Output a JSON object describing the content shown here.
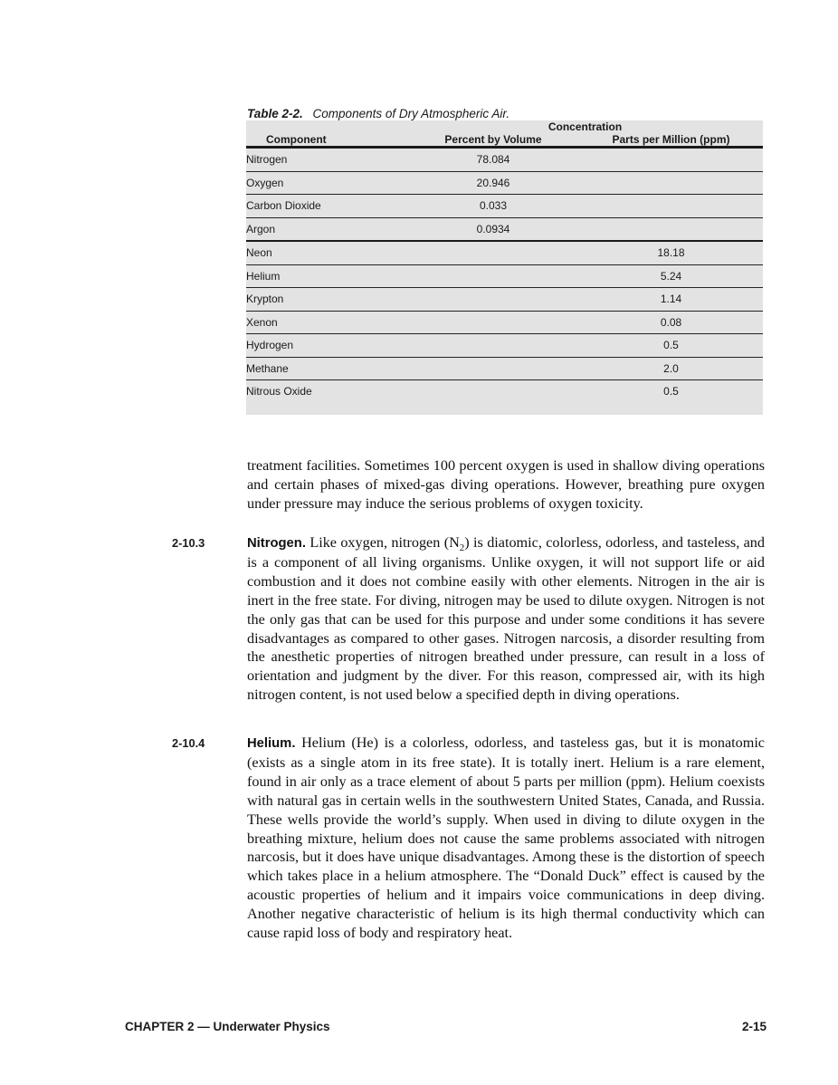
{
  "colors": {
    "table_bg": "#e3e3e3",
    "rule": "#1a1a1a",
    "text": "#111111"
  },
  "table": {
    "caption_label": "Table 2-2.",
    "caption_text": "Components of Dry Atmospheric Air.",
    "concentration_header": "Concentration",
    "columns": {
      "component": "Component",
      "percent": "Percent by Volume",
      "ppm": "Parts per Million (ppm)"
    },
    "rows": [
      {
        "component": "Nitrogen",
        "percent": "78.084",
        "ppm": ""
      },
      {
        "component": "Oxygen",
        "percent": "20.946",
        "ppm": ""
      },
      {
        "component": "Carbon Dioxide",
        "percent": "0.033",
        "ppm": ""
      },
      {
        "component": "Argon",
        "percent": "0.0934",
        "ppm": ""
      },
      {
        "component": "Neon",
        "percent": "",
        "ppm": "18.18"
      },
      {
        "component": "Helium",
        "percent": "",
        "ppm": "5.24"
      },
      {
        "component": "Krypton",
        "percent": "",
        "ppm": "1.14"
      },
      {
        "component": "Xenon",
        "percent": "",
        "ppm": "0.08"
      },
      {
        "component": "Hydrogen",
        "percent": "",
        "ppm": "0.5"
      },
      {
        "component": "Methane",
        "percent": "",
        "ppm": "2.0"
      },
      {
        "component": "Nitrous Oxide",
        "percent": "",
        "ppm": "0.5"
      }
    ]
  },
  "paragraphs": {
    "intro": {
      "text": "treatment facilities. Sometimes 100 percent oxygen is used in shallow diving operations and certain phases of mixed-gas diving operations. However, breathing pure oxygen under pressure may induce the serious problems of oxygen toxicity."
    },
    "nitrogen": {
      "number": "2-10.3",
      "lead": "Nitrogen.",
      "pre_sub": " Like oxygen, nitrogen (N",
      "sub": "2",
      "post_sub": ") is diatomic, colorless, odorless, and tasteless, and is a component of all living organisms. Unlike oxygen, it will not support life or aid combustion and it does not combine easily with other elements. Nitrogen in the air is inert in the free state. For diving, nitrogen may be used to dilute oxygen. Nitrogen is not the only gas that can be used for this purpose and under some conditions it has severe disadvantages as compared to other gases. Nitrogen narcosis, a disorder resulting from the anesthetic properties of nitrogen breathed under pressure, can result in a loss of orientation and judgment by the diver. For this reason, compressed air, with its high nitrogen content, is not used below a specified depth in diving operations."
    },
    "helium": {
      "number": "2-10.4",
      "lead": "Helium.",
      "text": " Helium (He) is a colorless, odorless, and tasteless gas, but it is monatomic (exists as a single atom in its free state). It is totally inert. Helium is a rare element, found in air only as a trace element of about 5 parts per million (ppm). Helium coexists with natural gas in certain wells in the southwestern United States, Canada, and Russia. These wells provide the world’s supply. When used in diving to dilute oxygen in the breathing mixture, helium does not cause the same problems associated with nitrogen narcosis, but it does have unique disadvantages. Among these is the distortion of speech which takes place in a helium atmosphere. The “Donald Duck” effect is caused by the acoustic properties of helium and it impairs voice communications in deep diving. Another negative characteristic of helium is its high thermal conductivity which can cause rapid loss of body and respiratory heat."
    }
  },
  "footer": {
    "left": "CHAPTER 2 — Underwater Physics",
    "right": "2-15"
  }
}
